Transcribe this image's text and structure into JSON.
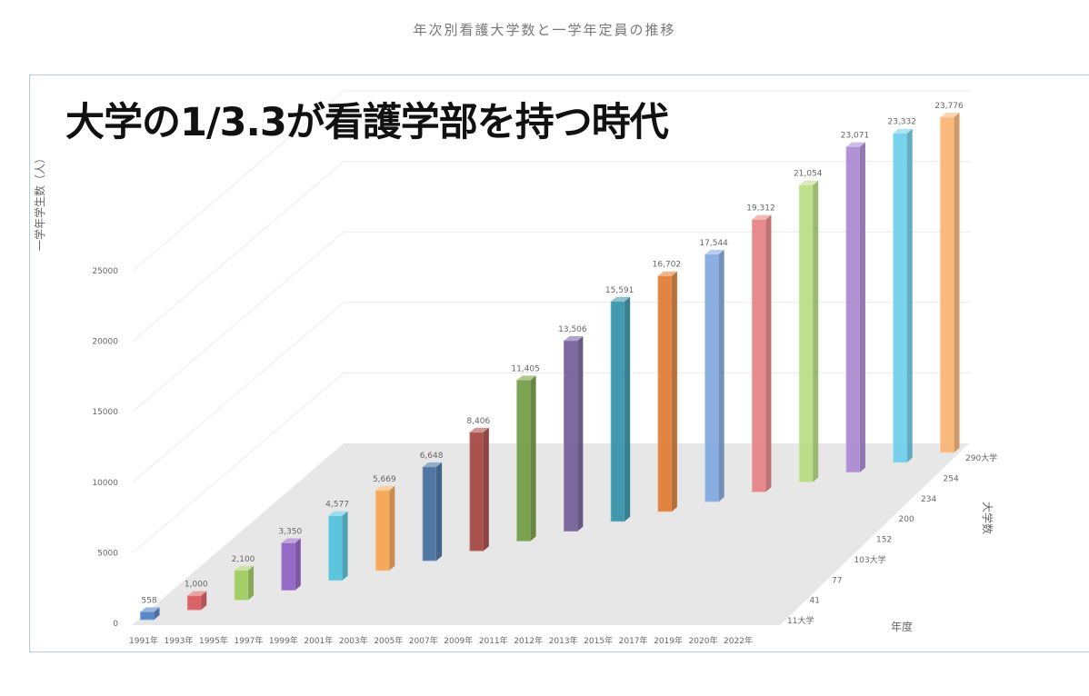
{
  "page": {
    "title": "年次別看護大学数と一学年定員の推移",
    "headline": "大学の1/3.3が看護学部を持つ時代"
  },
  "chart_data": {
    "type": "bar",
    "title": "年次別看護大学数と一学年定員の推移",
    "ylabel": "一学年学生数（人）",
    "zlabel": "大学数",
    "xlabel2": "年度",
    "ylim": [
      0,
      25000
    ],
    "yticks": [
      "0",
      "5000",
      "10000",
      "15000",
      "20000",
      "25000"
    ],
    "categories": [
      "1991年",
      "1993年",
      "1995年",
      "1997年",
      "1999年",
      "2001年",
      "2003年",
      "2005年",
      "2007年",
      "2009年",
      "2011年",
      "2012年",
      "2013年",
      "2015年",
      "2017年",
      "2019年",
      "2020年",
      "2022年"
    ],
    "values": [
      558,
      1000,
      2100,
      3350,
      4577,
      5669,
      6648,
      8406,
      11405,
      13506,
      15591,
      16702,
      17544,
      19312,
      21054,
      23071,
      23332,
      23776
    ],
    "value_labels": [
      "558",
      "1,000",
      "2,100",
      "3,350",
      "4,577",
      "5,669",
      "6,648",
      "8,406",
      "11,405",
      "13,506",
      "15,591",
      "16,702",
      "17,544",
      "19,312",
      "21,054",
      "23,071",
      "23,332",
      "23,776"
    ],
    "depth_labels": [
      "11大学",
      "41",
      "77",
      "103大学",
      "152",
      "200",
      "234",
      "254",
      "290大学"
    ],
    "colors": [
      "#4a7cc4",
      "#d9545a",
      "#9ccc5a",
      "#8e5bc2",
      "#4cc0da",
      "#f7a24d",
      "#3f6a9c",
      "#a2403c",
      "#6f9a3f",
      "#6f5a93",
      "#2f8fa6",
      "#e0782e",
      "#7ea6de",
      "#e57e80",
      "#b7dd7f",
      "#a785cf",
      "#69cdea",
      "#fbb36f"
    ],
    "grid": true
  }
}
